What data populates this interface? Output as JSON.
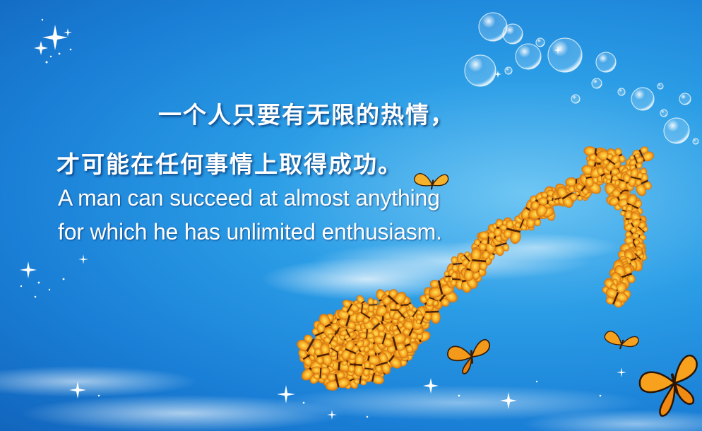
{
  "poster": {
    "cn_line1": "一个人只要有无限的热情，",
    "cn_line2": "才可能在任何事情上取得成功。",
    "en_line1": "A man can succeed at almost anything",
    "en_line2": "for which he has unlimited enthusiasm."
  },
  "colors": {
    "sky_top": "#1a7fd6",
    "sky_light": "#6fc6f3",
    "butterfly_orange": "#f39a1a",
    "butterfly_yellow": "#ffd23a",
    "text": "#ffffff"
  },
  "icons": [
    "music-note-of-butterflies",
    "butterfly-icon",
    "bubble-icon",
    "sparkle-icon",
    "cloud-icon"
  ]
}
